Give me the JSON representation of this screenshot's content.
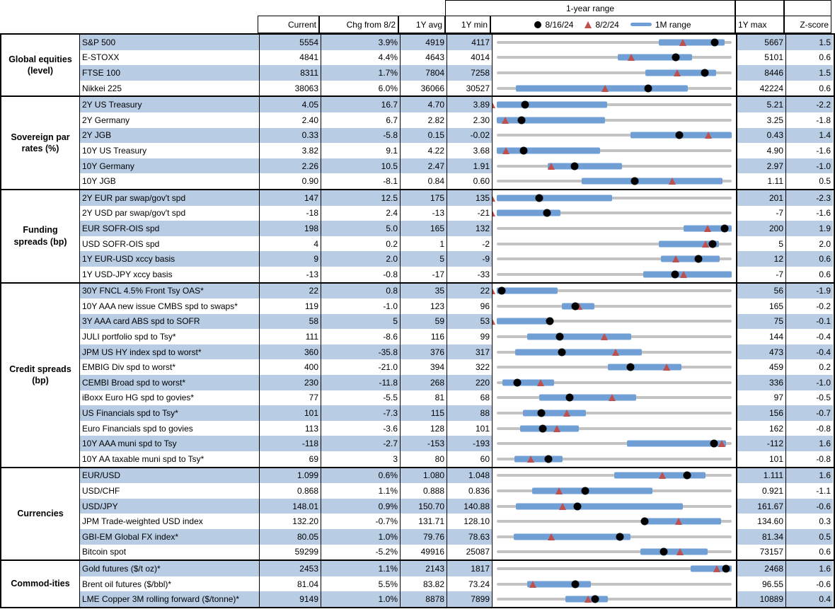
{
  "columns": {
    "current": "Current",
    "chg": "Chg from 8/2",
    "avg": "1Y avg",
    "min": "1Y min",
    "max": "1Y max",
    "z": "Z-score"
  },
  "range_header": {
    "title": "1-year range",
    "legend_dot": "8/16/24",
    "legend_triangle": "8/2/24",
    "legend_bar": "1M range"
  },
  "colors": {
    "stripe": "#b8cce4",
    "bar": "#6f9fd5",
    "triangle": "#c0504d",
    "dot": "#000000",
    "track": "#c3c3c3"
  },
  "chart_data": {
    "type": "table",
    "marker_meaning": {
      "dot": "8/16/24",
      "triangle": "8/2/24",
      "bar": "1M range"
    },
    "sections": [
      {
        "label": "Global equities (level)",
        "rows": [
          {
            "name": "S&P 500",
            "current": "5554",
            "chg": "3.9%",
            "avg": "4919",
            "min": "4117",
            "max": "5667",
            "z": "1.5",
            "range": {
              "bar": [
                0.69,
                0.97
              ],
              "dot": 0.927,
              "tri": 0.793
            }
          },
          {
            "name": "E-STOXX",
            "current": "4841",
            "chg": "4.4%",
            "avg": "4643",
            "min": "4014",
            "max": "5101",
            "z": "0.6",
            "range": {
              "bar": [
                0.515,
                0.83
              ],
              "dot": 0.761,
              "tri": 0.573
            }
          },
          {
            "name": "FTSE 100",
            "current": "8311",
            "chg": "1.7%",
            "avg": "7804",
            "min": "7258",
            "max": "8446",
            "z": "1.5",
            "range": {
              "bar": [
                0.633,
                0.935
              ],
              "dot": 0.886,
              "tri": 0.769
            }
          },
          {
            "name": "Nikkei 225",
            "current": "38063",
            "chg": "6.0%",
            "avg": "36066",
            "min": "30527",
            "max": "42224",
            "z": "0.6",
            "range": {
              "bar": [
                0.08,
                0.814
              ],
              "dot": 0.644,
              "tri": 0.46
            }
          }
        ]
      },
      {
        "label": "Sovereign par rates (%)",
        "rows": [
          {
            "name": "2Y US Treasury",
            "current": "4.05",
            "chg": "16.7",
            "avg": "4.70",
            "min": "3.89",
            "max": "5.21",
            "z": "-2.2",
            "range": {
              "bar": [
                0,
                0.47
              ],
              "dot": 0.121,
              "tri": -0.02
            }
          },
          {
            "name": "2Y Germany",
            "current": "2.40",
            "chg": "6.7",
            "avg": "2.82",
            "min": "2.30",
            "max": "3.25",
            "z": "-1.8",
            "range": {
              "bar": [
                0,
                0.46
              ],
              "dot": 0.105,
              "tri": 0.035
            }
          },
          {
            "name": "2Y JGB",
            "current": "0.33",
            "chg": "-5.8",
            "avg": "0.15",
            "min": "-0.02",
            "max": "0.43",
            "z": "1.4",
            "range": {
              "bar": [
                0.568,
                1
              ],
              "dot": 0.778,
              "tri": 0.9
            }
          },
          {
            "name": "10Y US Treasury",
            "current": "3.82",
            "chg": "9.1",
            "avg": "4.22",
            "min": "3.68",
            "max": "4.90",
            "z": "-1.6",
            "range": {
              "bar": [
                0,
                0.44
              ],
              "dot": 0.115,
              "tri": 0.04
            }
          },
          {
            "name": "10Y Germany",
            "current": "2.26",
            "chg": "10.5",
            "avg": "2.47",
            "min": "1.91",
            "max": "2.97",
            "z": "-1.0",
            "range": {
              "bar": [
                0.216,
                0.533
              ],
              "dot": 0.33,
              "tri": 0.231
            }
          },
          {
            "name": "10Y JGB",
            "current": "0.90",
            "chg": "-8.1",
            "avg": "0.84",
            "min": "0.60",
            "max": "1.11",
            "z": "0.5",
            "range": {
              "bar": [
                0.362,
                0.96
              ],
              "dot": 0.588,
              "tri": 0.747
            }
          }
        ]
      },
      {
        "label": "Funding spreads (bp)",
        "rows": [
          {
            "name": "2Y EUR par swap/gov't spd",
            "current": "147",
            "chg": "12.5",
            "avg": "175",
            "min": "135",
            "max": "201",
            "z": "-2.3",
            "range": {
              "bar": [
                0,
                0.49
              ],
              "dot": 0.182,
              "tri": -0.02
            }
          },
          {
            "name": "2Y USD par swap/gov't spd",
            "current": "-18",
            "chg": "2.4",
            "avg": "-13",
            "min": "-21",
            "max": "-7",
            "z": "-1.6",
            "range": {
              "bar": [
                0,
                0.27
              ],
              "dot": 0.214,
              "tri": -0.02
            }
          },
          {
            "name": "EUR SOFR-OIS spd",
            "current": "198",
            "chg": "5.0",
            "avg": "165",
            "min": "132",
            "max": "200",
            "z": "1.9",
            "range": {
              "bar": [
                0.794,
                1
              ],
              "dot": 0.971,
              "tri": 0.897
            }
          },
          {
            "name": "USD SOFR-OIS spd",
            "current": "4",
            "chg": "0.2",
            "avg": "1",
            "min": "-2",
            "max": "5",
            "z": "2.0",
            "range": {
              "bar": [
                0.69,
                0.945
              ],
              "dot": 0.92,
              "tri": 0.89
            }
          },
          {
            "name": "1Y EUR-USD xccy basis",
            "current": "9",
            "chg": "2.0",
            "avg": "5",
            "min": "-9",
            "max": "12",
            "z": "0.6",
            "range": {
              "bar": [
                0.698,
                0.95
              ],
              "dot": 0.857,
              "tri": 0.762
            }
          },
          {
            "name": "1Y USD-JPY xccy basis",
            "current": "-13",
            "chg": "-0.8",
            "avg": "-17",
            "min": "-33",
            "max": "-7",
            "z": "0.6",
            "range": {
              "bar": [
                0.623,
                1
              ],
              "dot": 0.759,
              "tri": 0.794
            }
          }
        ]
      },
      {
        "label": "Credit spreads (bp)",
        "rows": [
          {
            "name": "30Y FNCL 4.5% Front Tsy OAS*",
            "current": "22",
            "chg": "0.8",
            "avg": "35",
            "min": "22",
            "max": "56",
            "z": "-1.9",
            "range": {
              "bar": [
                0,
                0.26
              ],
              "dot": 0.022,
              "tri": -0.02
            }
          },
          {
            "name": "10Y AAA new issue CMBS spd to swaps*",
            "current": "119",
            "chg": "-1.0",
            "avg": "123",
            "min": "96",
            "max": "165",
            "z": "-0.2",
            "range": {
              "bar": [
                0.276,
                0.417
              ],
              "dot": 0.333,
              "tri": 0.35
            }
          },
          {
            "name": "3Y AAA card ABS spd to SOFR",
            "current": "58",
            "chg": "5",
            "avg": "59",
            "min": "53",
            "max": "75",
            "z": "-0.1",
            "range": {
              "bar": [
                0,
                0.216
              ],
              "dot": 0.227,
              "tri": -0.02
            }
          },
          {
            "name": "JULI portfolio spd to Tsy*",
            "current": "111",
            "chg": "-8.6",
            "avg": "116",
            "min": "99",
            "max": "144",
            "z": "-0.4",
            "range": {
              "bar": [
                0.131,
                0.571
              ],
              "dot": 0.267,
              "tri": 0.458
            }
          },
          {
            "name": "JPM US HY index spd to worst*",
            "current": "360",
            "chg": "-35.8",
            "avg": "376",
            "min": "317",
            "max": "473",
            "z": "-0.4",
            "range": {
              "bar": [
                0.078,
                0.618
              ],
              "dot": 0.276,
              "tri": 0.505
            }
          },
          {
            "name": "EMBIG Div spd to worst*",
            "current": "400",
            "chg": "-21.0",
            "avg": "394",
            "min": "322",
            "max": "459",
            "z": "0.2",
            "range": {
              "bar": [
                0.474,
                0.786
              ],
              "dot": 0.569,
              "tri": 0.723
            }
          },
          {
            "name": "CEMBI Broad spd to worst*",
            "current": "230",
            "chg": "-11.8",
            "avg": "268",
            "min": "220",
            "max": "336",
            "z": "-1.0",
            "range": {
              "bar": [
                0.025,
                0.244
              ],
              "dot": 0.086,
              "tri": 0.188
            }
          },
          {
            "name": "iBoxx Euro HG spd to govies*",
            "current": "77",
            "chg": "-5.5",
            "avg": "81",
            "min": "68",
            "max": "97",
            "z": "-0.5",
            "range": {
              "bar": [
                0.181,
                0.593
              ],
              "dot": 0.31,
              "tri": 0.492
            }
          },
          {
            "name": "US Financials spd to Tsy*",
            "current": "101",
            "chg": "-7.3",
            "avg": "115",
            "min": "88",
            "max": "156",
            "z": "-0.7",
            "range": {
              "bar": [
                0.112,
                0.379
              ],
              "dot": 0.191,
              "tri": 0.299
            }
          },
          {
            "name": "Euro Financials spd to govies",
            "current": "113",
            "chg": "-3.6",
            "avg": "128",
            "min": "101",
            "max": "162",
            "z": "-0.8",
            "range": {
              "bar": [
                0.1,
                0.35
              ],
              "dot": 0.197,
              "tri": 0.256
            }
          },
          {
            "name": "10Y AAA muni spd to Tsy",
            "current": "-118",
            "chg": "-2.7",
            "avg": "-153",
            "min": "-193",
            "max": "-112",
            "z": "1.6",
            "range": {
              "bar": [
                0.553,
                0.975
              ],
              "dot": 0.926,
              "tri": 0.958
            }
          },
          {
            "name": "10Y AA taxable muni spd to Tsy*",
            "current": "69",
            "chg": "3",
            "avg": "80",
            "min": "60",
            "max": "101",
            "z": "-0.8",
            "range": {
              "bar": [
                0.075,
                0.28
              ],
              "dot": 0.22,
              "tri": 0.146
            }
          }
        ]
      },
      {
        "label": "Currencies",
        "rows": [
          {
            "name": "EUR/USD",
            "current": "1.099",
            "chg": "0.6%",
            "avg": "1.080",
            "min": "1.048",
            "max": "1.111",
            "z": "1.6",
            "range": {
              "bar": [
                0.5,
                0.889
              ],
              "dot": 0.81,
              "tri": 0.705
            }
          },
          {
            "name": "USD/CHF",
            "current": "0.868",
            "chg": "1.1%",
            "avg": "0.888",
            "min": "0.836",
            "max": "0.921",
            "z": "-1.1",
            "range": {
              "bar": [
                0.151,
                0.663
              ],
              "dot": 0.376,
              "tri": 0.266
            }
          },
          {
            "name": "USD/JPY",
            "current": "148.01",
            "chg": "0.9%",
            "avg": "150.70",
            "min": "140.88",
            "max": "161.67",
            "z": "-0.6",
            "range": {
              "bar": [
                0.08,
                0.792
              ],
              "dot": 0.343,
              "tri": 0.279
            }
          },
          {
            "name": "JPM Trade-weighted USD index",
            "current": "132.20",
            "chg": "-0.7%",
            "avg": "131.71",
            "min": "128.10",
            "max": "134.60",
            "z": "0.3",
            "range": {
              "bar": [
                0.618,
                0.955
              ],
              "dot": 0.631,
              "tri": 0.774
            }
          },
          {
            "name": "GBI-EM Global FX index*",
            "current": "80.05",
            "chg": "1.0%",
            "avg": "79.76",
            "min": "78.63",
            "max": "81.34",
            "z": "0.5",
            "range": {
              "bar": [
                0.072,
                0.568
              ],
              "dot": 0.524,
              "tri": 0.232
            }
          },
          {
            "name": "Bitcoin spot",
            "current": "59299",
            "chg": "-5.2%",
            "avg": "49916",
            "min": "25087",
            "max": "73157",
            "z": "0.6",
            "range": {
              "bar": [
                0.611,
                0.899
              ],
              "dot": 0.712,
              "tri": 0.779
            }
          }
        ]
      },
      {
        "label": "Commod-ities",
        "rows": [
          {
            "name": "Gold futures ($/t oz)*",
            "current": "2453",
            "chg": "1.1%",
            "avg": "2143",
            "min": "1817",
            "max": "2468",
            "z": "1.6",
            "range": {
              "bar": [
                0.826,
                1
              ],
              "dot": 0.977,
              "tri": 0.936
            }
          },
          {
            "name": "Brent oil futures ($/bbl)*",
            "current": "81.04",
            "chg": "5.5%",
            "avg": "83.82",
            "min": "73.24",
            "max": "96.55",
            "z": "-0.6",
            "range": {
              "bar": [
                0.129,
                0.402
              ],
              "dot": 0.335,
              "tri": 0.154
            }
          },
          {
            "name": "LME Copper 3M rolling forward ($/tonne)*",
            "current": "9149",
            "chg": "1.0%",
            "avg": "8878",
            "min": "7899",
            "max": "10889",
            "z": "0.4",
            "range": {
              "bar": [
                0.291,
                0.472
              ],
              "dot": 0.418,
              "tri": 0.388
            }
          }
        ]
      }
    ]
  }
}
